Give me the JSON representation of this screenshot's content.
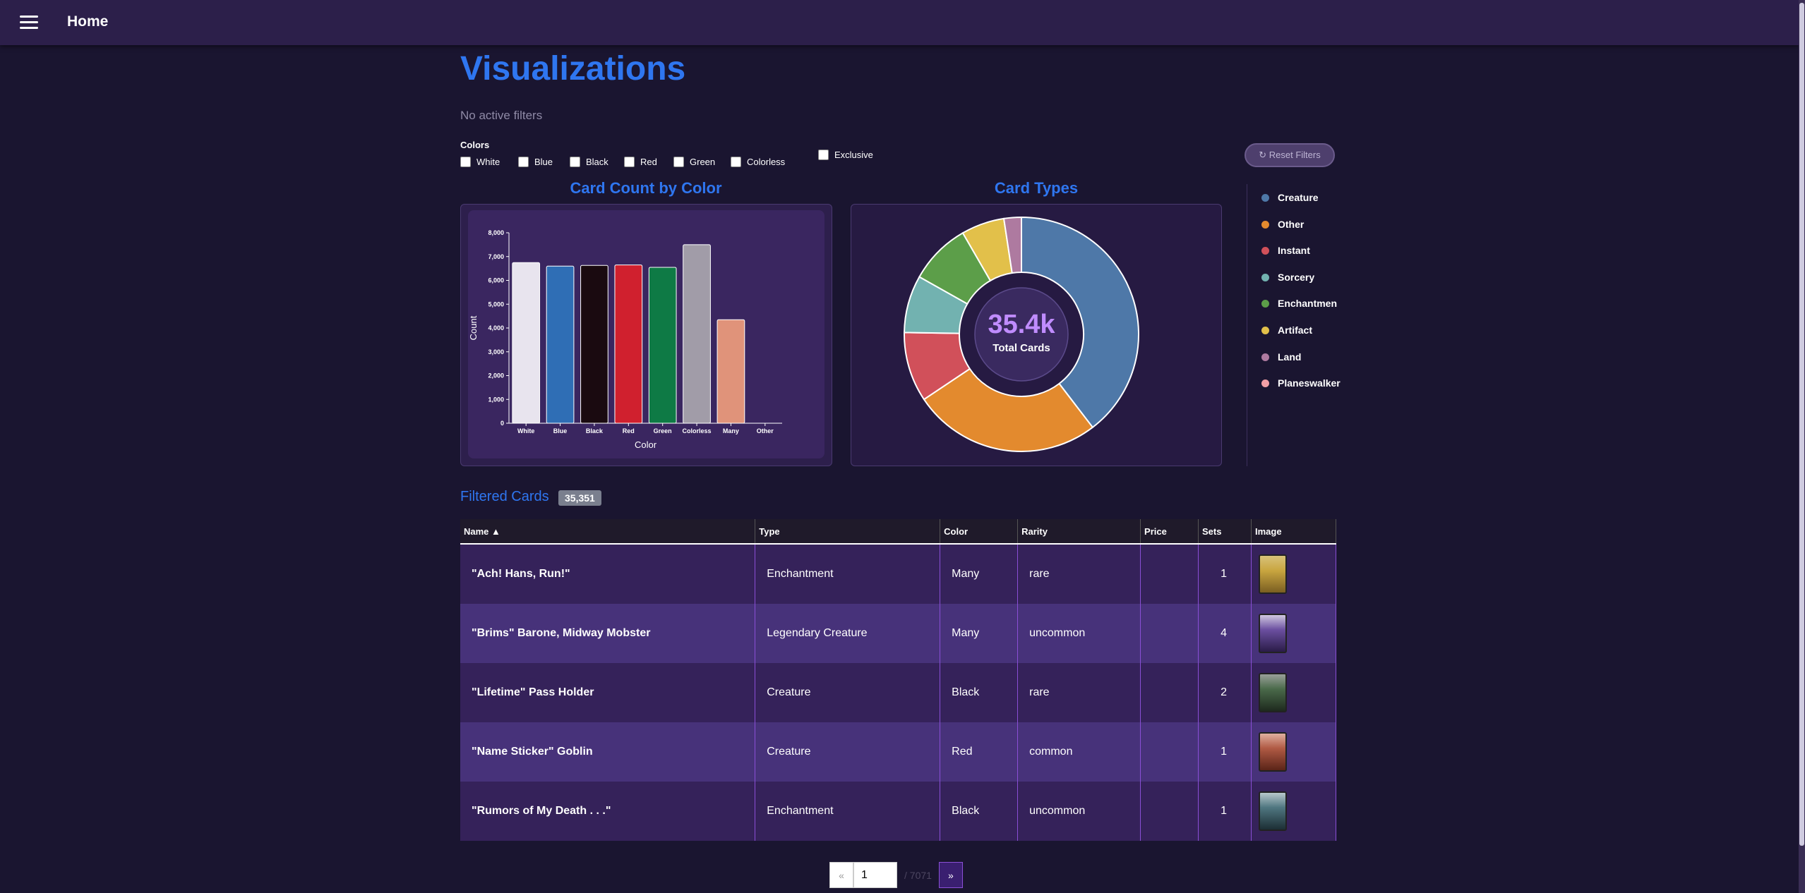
{
  "header": {
    "home_label": "Home"
  },
  "page": {
    "title": "Visualizations",
    "filter_status": "No active filters"
  },
  "filters": {
    "colors_label": "Colors",
    "options": [
      "White",
      "Blue",
      "Black",
      "Red",
      "Green",
      "Colorless"
    ],
    "exclusive_label": "Exclusive",
    "reset_label": "↻ Reset Filters"
  },
  "charts": {
    "bar_title": "Card Count by Color",
    "donut_title": "Card Types"
  },
  "chart_data": [
    {
      "type": "bar",
      "title": "Card Count by Color",
      "xlabel": "Color",
      "ylabel": "Count",
      "categories": [
        "White",
        "Blue",
        "Black",
        "Red",
        "Green",
        "Colorless",
        "Many",
        "Other"
      ],
      "values": [
        6750,
        6600,
        6630,
        6650,
        6550,
        7500,
        4350,
        0
      ],
      "colors": [
        "#e8e4ee",
        "#2f6eb5",
        "#1a0a10",
        "#d0202e",
        "#0e7a45",
        "#a19ca8",
        "#e0937a",
        "#888888"
      ],
      "ylim": [
        0,
        8000
      ],
      "yticks": [
        "0",
        "1,000",
        "2,000",
        "3,000",
        "4,000",
        "5,000",
        "6,000",
        "7,000",
        "8,000"
      ],
      "grid": false
    },
    {
      "type": "pie",
      "title": "Card Types",
      "center_value": "35.4k",
      "center_label": "Total Cards",
      "labels": [
        "Creature",
        "Other",
        "Instant",
        "Sorcery",
        "Enchantment",
        "Artifact",
        "Land",
        "Planeswalker"
      ],
      "values": [
        14000,
        9200,
        3400,
        2800,
        3000,
        2100,
        850,
        0
      ],
      "colors": [
        "#4e78a8",
        "#e38a2e",
        "#d1505a",
        "#72b2b0",
        "#5c9e49",
        "#e2c04a",
        "#ae7aa0",
        "#f29fa6"
      ],
      "legend_position": "right"
    }
  ],
  "legend": {
    "items": [
      {
        "label": "Creature",
        "color": "#4e78a8"
      },
      {
        "label": "Other",
        "color": "#e38a2e"
      },
      {
        "label": "Instant",
        "color": "#d1505a"
      },
      {
        "label": "Sorcery",
        "color": "#72b2b0"
      },
      {
        "label": "Enchantmen",
        "color": "#5c9e49"
      },
      {
        "label": "Artifact",
        "color": "#e2c04a"
      },
      {
        "label": "Land",
        "color": "#ae7aa0"
      },
      {
        "label": "Planeswalker",
        "color": "#f29fa6"
      }
    ]
  },
  "table": {
    "title": "Filtered Cards",
    "count": "35,351",
    "headers": [
      "Name ▲",
      "Type",
      "Color",
      "Rarity",
      "Price",
      "Sets",
      "Image"
    ],
    "rows": [
      {
        "name": "\"Ach! Hans, Run!\"",
        "type": "Enchantment",
        "color": "Many",
        "rarity": "rare",
        "price": "",
        "sets": "1"
      },
      {
        "name": "\"Brims\" Barone, Midway Mobster",
        "type": "Legendary Creature",
        "color": "Many",
        "rarity": "uncommon",
        "price": "",
        "sets": "4"
      },
      {
        "name": "\"Lifetime\" Pass Holder",
        "type": "Creature",
        "color": "Black",
        "rarity": "rare",
        "price": "",
        "sets": "2"
      },
      {
        "name": "\"Name Sticker\" Goblin",
        "type": "Creature",
        "color": "Red",
        "rarity": "common",
        "price": "",
        "sets": "1"
      },
      {
        "name": "\"Rumors of My Death . . .\"",
        "type": "Enchantment",
        "color": "Black",
        "rarity": "uncommon",
        "price": "",
        "sets": "1"
      }
    ],
    "thumb_colors": [
      "#c9a640",
      "#6b4fa0",
      "#4a6a4a",
      "#b05a44",
      "#4f7680"
    ]
  },
  "pagination": {
    "prev": "«",
    "current": "1",
    "total": "/ 7071",
    "next": "»"
  }
}
